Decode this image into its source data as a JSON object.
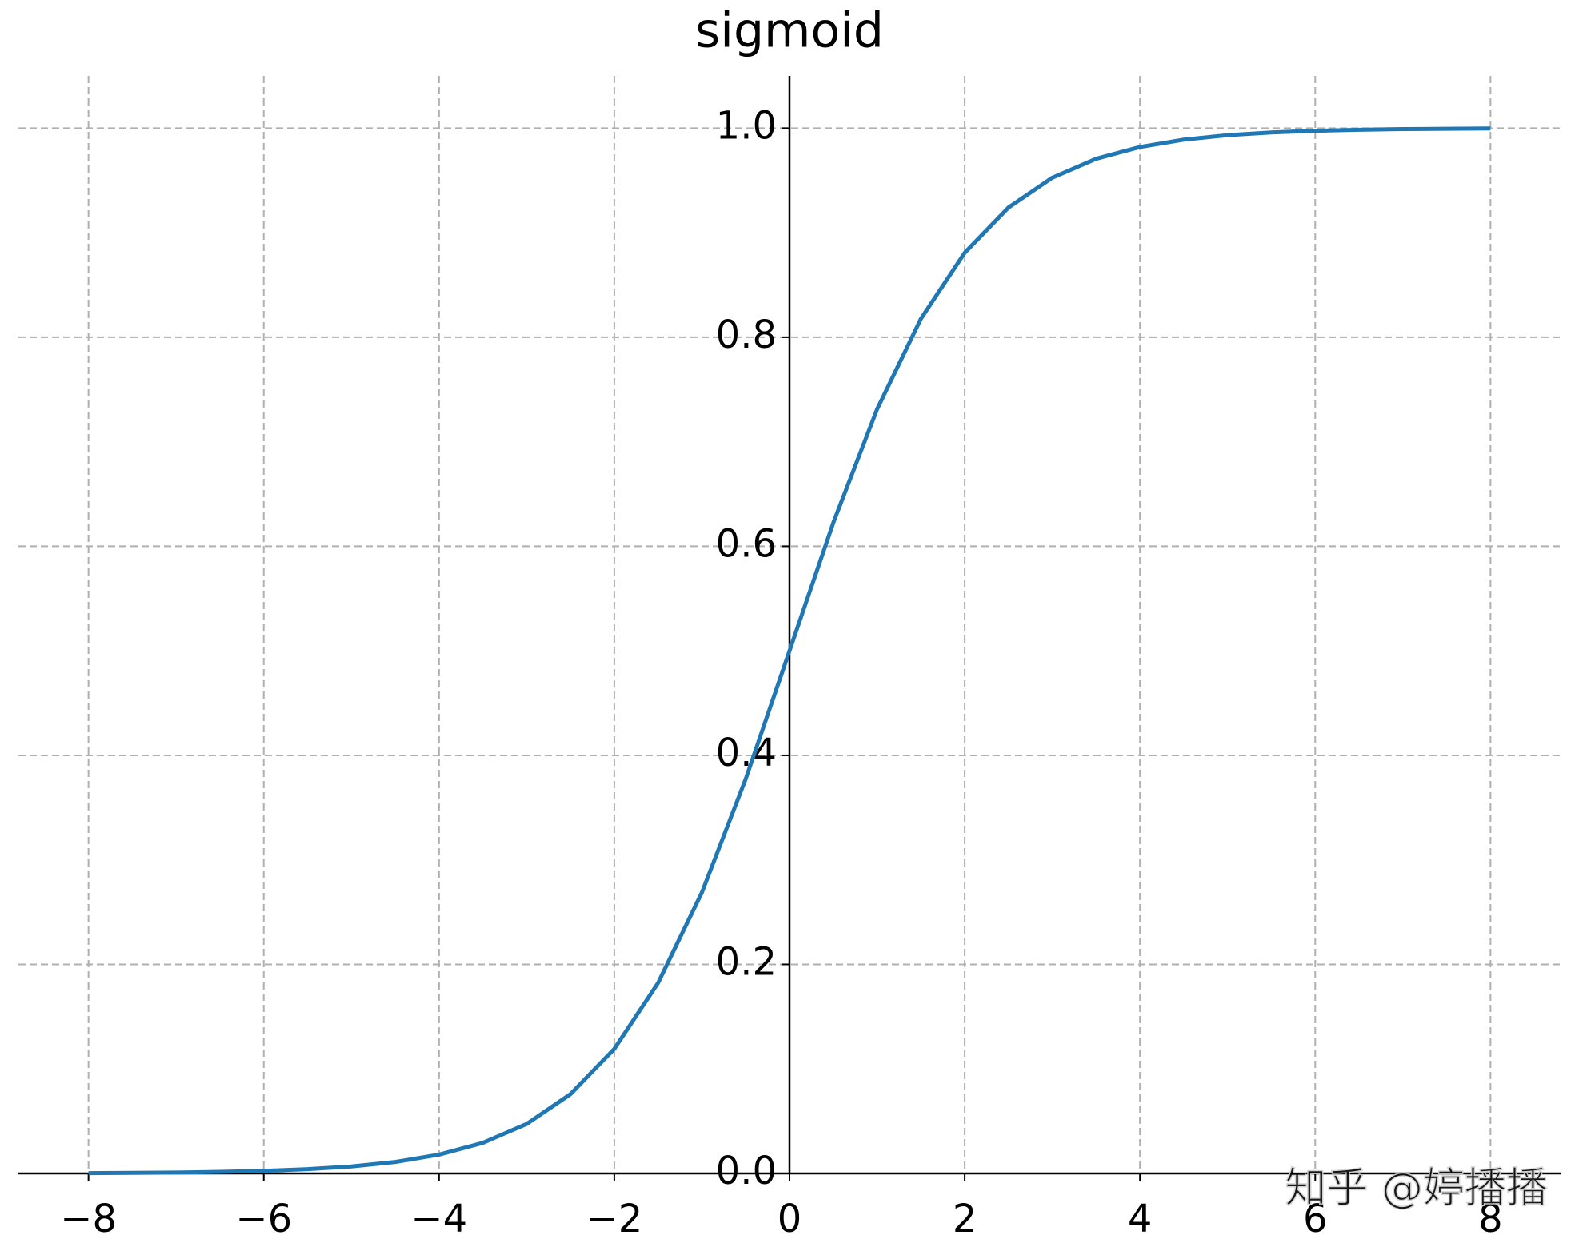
{
  "chart_data": {
    "type": "line",
    "title": "sigmoid",
    "x": [
      -8,
      -7.5,
      -7,
      -6.5,
      -6,
      -5.5,
      -5,
      -4.5,
      -4,
      -3.5,
      -3,
      -2.5,
      -2,
      -1.5,
      -1,
      -0.5,
      0,
      0.5,
      1,
      1.5,
      2,
      2.5,
      3,
      3.5,
      4,
      4.5,
      5,
      5.5,
      6,
      6.5,
      7,
      7.5,
      8
    ],
    "series": [
      {
        "color": "#1f77b4",
        "values": [
          0.0003,
          0.0006,
          0.0009,
          0.0015,
          0.0025,
          0.0041,
          0.0067,
          0.011,
          0.018,
          0.0293,
          0.0474,
          0.0759,
          0.1192,
          0.1824,
          0.2689,
          0.3775,
          0.5,
          0.6225,
          0.7311,
          0.8176,
          0.8808,
          0.9241,
          0.9526,
          0.9707,
          0.982,
          0.989,
          0.9933,
          0.9959,
          0.9975,
          0.9985,
          0.9991,
          0.9994,
          0.9997
        ]
      }
    ],
    "xlim": [
      -8.8,
      8.8
    ],
    "ylim": [
      0,
      1.05
    ],
    "xticks": [
      {
        "value": -8,
        "label": "−8"
      },
      {
        "value": -6,
        "label": "−6"
      },
      {
        "value": -4,
        "label": "−4"
      },
      {
        "value": -2,
        "label": "−2"
      },
      0,
      2,
      4,
      6,
      8
    ],
    "yticks": [
      {
        "value": 0,
        "label": "0.0"
      },
      0.2,
      0.4,
      0.6,
      0.8,
      {
        "value": 1,
        "label": "1.0"
      }
    ],
    "grid": true,
    "watermark": "知乎 @婷播播"
  }
}
